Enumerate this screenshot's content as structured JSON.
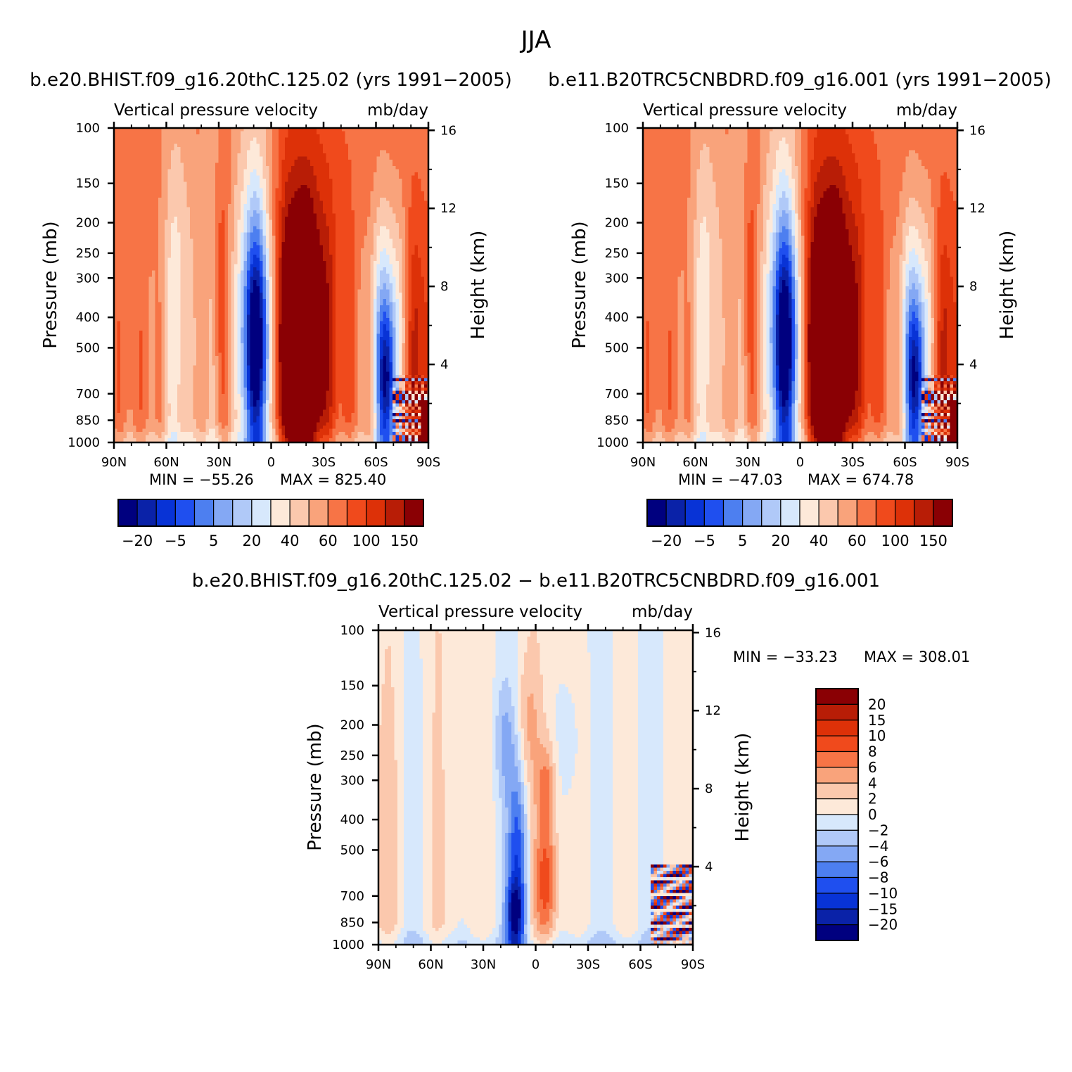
{
  "figure": {
    "title": "JJA"
  },
  "chart_data": [
    {
      "type": "heatmap",
      "title": "b.e20.BHIST.f09_g16.20thC.125.02 (yrs 1991−2005)",
      "subtitle_left": "Vertical pressure velocity",
      "subtitle_right": "mb/day",
      "ylabel": "Pressure (mb)",
      "y2label": "Height (km)",
      "x_ticks": [
        "90N",
        "60N",
        "30N",
        "0",
        "30S",
        "60S",
        "90S"
      ],
      "x_range": [
        90,
        -90
      ],
      "y_ticks": [
        100,
        150,
        200,
        250,
        300,
        400,
        500,
        700,
        850,
        1000
      ],
      "y_range": [
        100,
        1000
      ],
      "y_scale": "log",
      "y2_ticks": [
        4,
        8,
        12,
        16
      ],
      "min_label": "MIN = −55.26",
      "max_label": "MAX = 825.40",
      "min": -55.26,
      "max": 825.4,
      "colorbar_labels": [
        "−20",
        "−5",
        "5",
        "20",
        "40",
        "60",
        "100",
        "150"
      ],
      "colorbar_orientation": "horizontal",
      "field": "up"
    },
    {
      "type": "heatmap",
      "title": "b.e11.B20TRC5CNBDRD.f09_g16.001 (yrs 1991−2005)",
      "subtitle_left": "Vertical pressure velocity",
      "subtitle_right": "mb/day",
      "ylabel": "Pressure (mb)",
      "y2label": "Height (km)",
      "x_ticks": [
        "90N",
        "60N",
        "30N",
        "0",
        "30S",
        "60S",
        "90S"
      ],
      "x_range": [
        90,
        -90
      ],
      "y_ticks": [
        100,
        150,
        200,
        250,
        300,
        400,
        500,
        700,
        850,
        1000
      ],
      "y_range": [
        100,
        1000
      ],
      "y_scale": "log",
      "y2_ticks": [
        4,
        8,
        12,
        16
      ],
      "min_label": "MIN = −47.03",
      "max_label": "MAX = 674.78",
      "min": -47.03,
      "max": 674.78,
      "colorbar_labels": [
        "−20",
        "−5",
        "5",
        "20",
        "40",
        "60",
        "100",
        "150"
      ],
      "colorbar_orientation": "horizontal",
      "field": "up"
    },
    {
      "type": "heatmap",
      "title": "b.e20.BHIST.f09_g16.20thC.125.02 − b.e11.B20TRC5CNBDRD.f09_g16.001",
      "subtitle_left": "Vertical pressure velocity",
      "subtitle_right": "mb/day",
      "ylabel": "Pressure (mb)",
      "y2label": "Height (km)",
      "x_ticks": [
        "90N",
        "60N",
        "30N",
        "0",
        "30S",
        "60S",
        "90S"
      ],
      "x_range": [
        90,
        -90
      ],
      "y_ticks": [
        100,
        150,
        200,
        250,
        300,
        400,
        500,
        700,
        850,
        1000
      ],
      "y_range": [
        100,
        1000
      ],
      "y_scale": "log",
      "y2_ticks": [
        4,
        8,
        12,
        16
      ],
      "min_label": "MIN = −33.23",
      "max_label": "MAX = 308.01",
      "min": -33.23,
      "max": 308.01,
      "colorbar_labels": [
        "20",
        "15",
        "10",
        "8",
        "6",
        "4",
        "2",
        "0",
        "−2",
        "−4",
        "−6",
        "−8",
        "−10",
        "−15",
        "−20"
      ],
      "colorbar_orientation": "vertical",
      "field": "diff"
    }
  ],
  "colors": {
    "scale": [
      "#00007f",
      "#0a22a8",
      "#0833d6",
      "#1f4fef",
      "#4d7ff0",
      "#84a8f4",
      "#b0c9f8",
      "#d7e8fc",
      "#fde9d9",
      "#fbc8ad",
      "#f9a37b",
      "#f77446",
      "#f04a1c",
      "#dd3108",
      "#b81d06",
      "#8a0004"
    ]
  }
}
